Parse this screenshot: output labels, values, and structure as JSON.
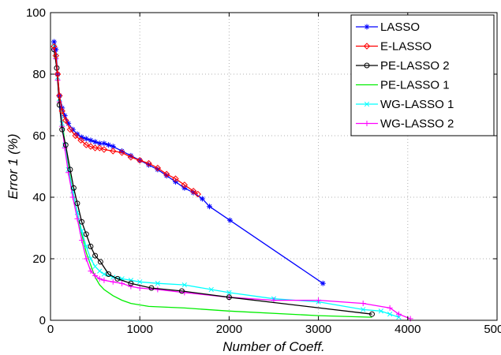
{
  "chart_data": {
    "type": "line",
    "title": "",
    "xlabel": "Number of Coeff.",
    "ylabel": "Error 1 (%)",
    "xlim": [
      0,
      5000
    ],
    "ylim": [
      0,
      100
    ],
    "xticks": [
      0,
      1000,
      2000,
      3000,
      4000,
      5000
    ],
    "yticks": [
      0,
      20,
      40,
      60,
      80,
      100
    ],
    "grid": true,
    "legend_position": "top-right",
    "series": [
      {
        "name": "LASSO",
        "color": "#0000ff",
        "marker": "star",
        "x": [
          40,
          60,
          80,
          100,
          130,
          160,
          200,
          250,
          300,
          350,
          400,
          450,
          500,
          550,
          600,
          650,
          700,
          800,
          900,
          1000,
          1100,
          1200,
          1300,
          1400,
          1500,
          1600,
          1700,
          1780,
          2010,
          3050
        ],
        "y": [
          90.5,
          88,
          80,
          73,
          69,
          66.5,
          64,
          62,
          60.5,
          59.5,
          59,
          58.5,
          58,
          57.5,
          57.5,
          57,
          56.5,
          55,
          53.5,
          52,
          50.5,
          49,
          47,
          45,
          43,
          41.5,
          39.5,
          37,
          32.5,
          12
        ]
      },
      {
        "name": "E-LASSO",
        "color": "#ff0000",
        "marker": "diamond",
        "x": [
          40,
          60,
          80,
          100,
          130,
          170,
          220,
          280,
          340,
          400,
          450,
          500,
          550,
          600,
          700,
          800,
          900,
          1000,
          1100,
          1200,
          1300,
          1400,
          1500,
          1600,
          1650
        ],
        "y": [
          89,
          86,
          80,
          73,
          68,
          65,
          62,
          60,
          58.5,
          57,
          56.5,
          56,
          56,
          55.5,
          55,
          54.5,
          53,
          52,
          51,
          49.5,
          47.5,
          46,
          44,
          42,
          41
        ]
      },
      {
        "name": "PE-LASSO 2",
        "color": "#000000",
        "marker": "circle",
        "x": [
          40,
          70,
          100,
          130,
          170,
          220,
          260,
          300,
          350,
          400,
          450,
          500,
          560,
          650,
          750,
          900,
          1130,
          1470,
          2000,
          3600
        ],
        "y": [
          88,
          82,
          70,
          62,
          57,
          49,
          43,
          38,
          32,
          28,
          24,
          21,
          19,
          15,
          13.5,
          12,
          10.5,
          9.5,
          7.5,
          2
        ]
      },
      {
        "name": "PE-LASSO 1",
        "color": "#00ee00",
        "marker": "none",
        "x": [
          40,
          60,
          80,
          100,
          130,
          160,
          200,
          250,
          300,
          350,
          400,
          450,
          500,
          550,
          600,
          700,
          800,
          900,
          1000,
          1100,
          1500,
          2000,
          3000,
          3600
        ],
        "y": [
          90,
          87,
          80,
          73,
          65,
          58,
          50,
          42,
          35,
          28,
          22,
          18,
          14,
          11.5,
          10,
          8,
          6.5,
          5.5,
          5,
          4.5,
          4,
          3,
          1.5,
          1
        ]
      },
      {
        "name": "WG-LASSO 1",
        "color": "#00ffff",
        "marker": "x",
        "x": [
          40,
          60,
          80,
          100,
          130,
          160,
          200,
          250,
          300,
          350,
          400,
          450,
          500,
          550,
          600,
          700,
          800,
          900,
          1000,
          1200,
          1500,
          1800,
          2000,
          2500,
          3000,
          3500,
          3700,
          3800,
          3900
        ],
        "y": [
          89,
          86,
          79,
          72,
          64,
          57,
          49,
          42,
          35,
          29,
          24,
          20,
          17.5,
          16,
          15,
          14,
          13.5,
          13,
          12.5,
          12,
          11.5,
          10,
          9,
          7,
          6,
          3.5,
          3,
          2,
          1
        ]
      },
      {
        "name": "WG-LASSO 2",
        "color": "#ff00ff",
        "marker": "plus",
        "x": [
          40,
          60,
          80,
          100,
          130,
          160,
          200,
          250,
          300,
          350,
          400,
          450,
          500,
          550,
          600,
          700,
          800,
          900,
          1000,
          1200,
          1500,
          2000,
          2500,
          3000,
          3500,
          3800,
          3900,
          4030
        ],
        "y": [
          88,
          85,
          78,
          71,
          63,
          56,
          48,
          40,
          33,
          26,
          20,
          16,
          14.5,
          13.5,
          13,
          12.5,
          12,
          11,
          10.5,
          10,
          9,
          7.5,
          6.5,
          6.5,
          5.5,
          4,
          2,
          0.5
        ]
      }
    ]
  }
}
